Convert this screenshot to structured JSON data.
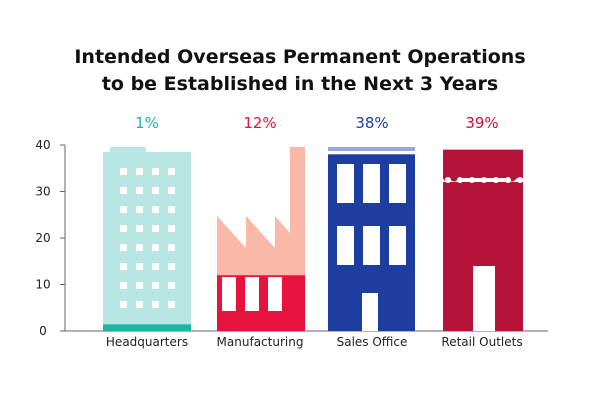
{
  "chart_data": {
    "type": "bar",
    "title": [
      "Intended Overseas Permanent Operations",
      "to be Established in the Next 3 Years"
    ],
    "categories": [
      "Headquarters",
      "Manufacturing",
      "Sales Office",
      "Retail Outlets"
    ],
    "values": [
      1,
      12,
      38,
      39
    ],
    "value_labels": [
      "1%",
      "12%",
      "38%",
      "39%"
    ],
    "y_ticks": [
      "0",
      "10",
      "20",
      "30",
      "40"
    ],
    "ylim": [
      0,
      40
    ],
    "colors": {
      "headquarters_building": "#b8e6e3",
      "headquarters_value": "#1fb5a5",
      "manufacturing_building": "#f9b8a8",
      "manufacturing_value": "#e8123f",
      "sales_building": "#1d3e9e",
      "sales_value": "#1d3e9e",
      "retail_building": "#b5133a",
      "retail_value": "#c8103a",
      "axis": "#666666"
    }
  }
}
